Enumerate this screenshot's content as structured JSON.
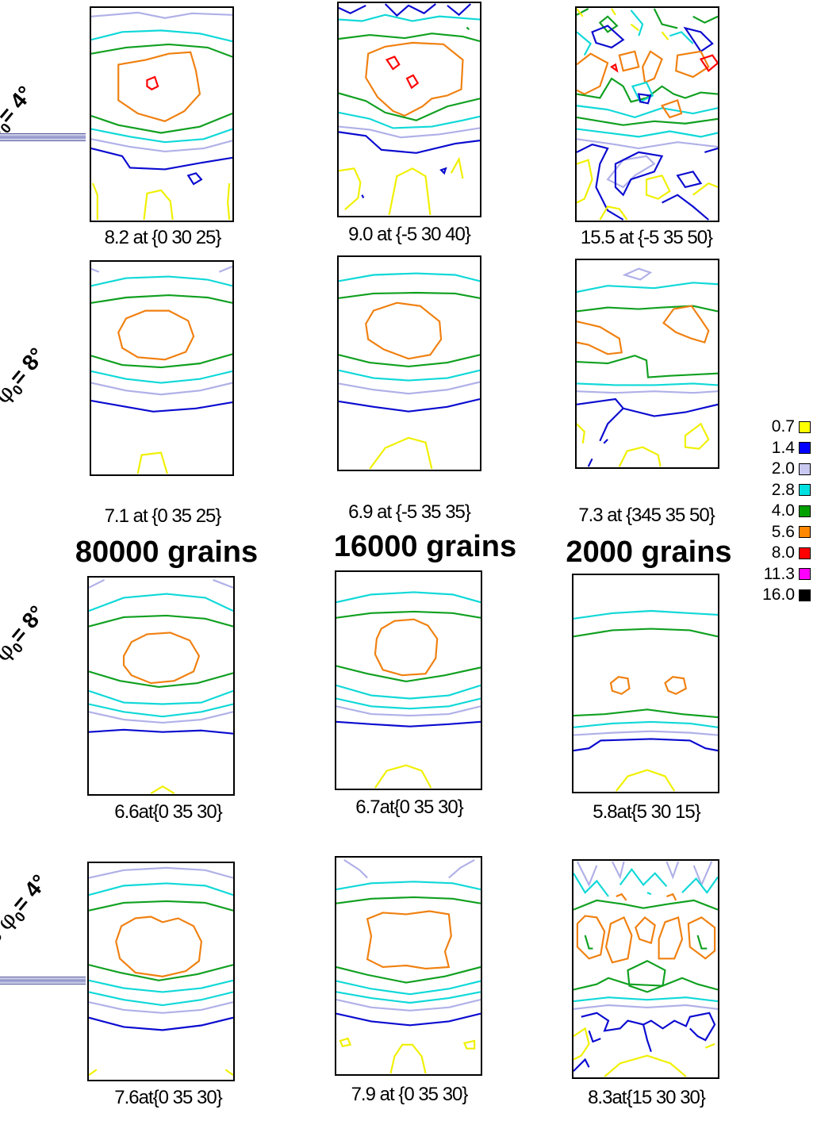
{
  "row_labels": [
    {
      "prefix": "",
      "text": "= 4°"
    },
    {
      "prefix": "",
      "text": "= 8°"
    },
    {
      "prefix": "",
      "text": "= 8°"
    },
    {
      "prefix": "de ",
      "text": "= 4°"
    }
  ],
  "phi_symbol": "φ",
  "phi_subscript": "0",
  "grain_counts": [
    "80000 grains",
    "16000 grains",
    "2000 grains"
  ],
  "captions": [
    [
      "8.2 at {0 30 25}",
      "9.0 at {-5 30 40}",
      "15.5 at {-5 35 50}"
    ],
    [
      "7.1 at {0 35 25}",
      "6.9 at {-5 35 35}",
      "7.3 at {345 35 50}"
    ],
    [
      "6.6at{0 35 30}",
      "6.7at{0 35 30}",
      "5.8at{5 30 15}"
    ],
    [
      "7.6at{0 35 30}",
      "7.9 at {0 35 30}",
      "8.3at{15 30 30}"
    ]
  ],
  "legend": [
    {
      "label": "0.7",
      "color": "#ffff00"
    },
    {
      "label": "1.4",
      "color": "#0000ff"
    },
    {
      "label": "2.0",
      "color": "#c8c8f0"
    },
    {
      "label": "2.8",
      "color": "#00e0e0"
    },
    {
      "label": "4.0",
      "color": "#00a000"
    },
    {
      "label": "5.6",
      "color": "#ff8800"
    },
    {
      "label": "8.0",
      "color": "#ff0000"
    },
    {
      "label": "11.3",
      "color": "#ff00ff"
    },
    {
      "label": "16.0",
      "color": "#000000"
    }
  ],
  "contour_colors": {
    "yellow": "#f0f000",
    "blue": "#0a0ad0",
    "lavender": "#b0b0e8",
    "cyan": "#10d8d8",
    "green": "#10a020",
    "orange": "#f08010",
    "red": "#ff0000"
  }
}
